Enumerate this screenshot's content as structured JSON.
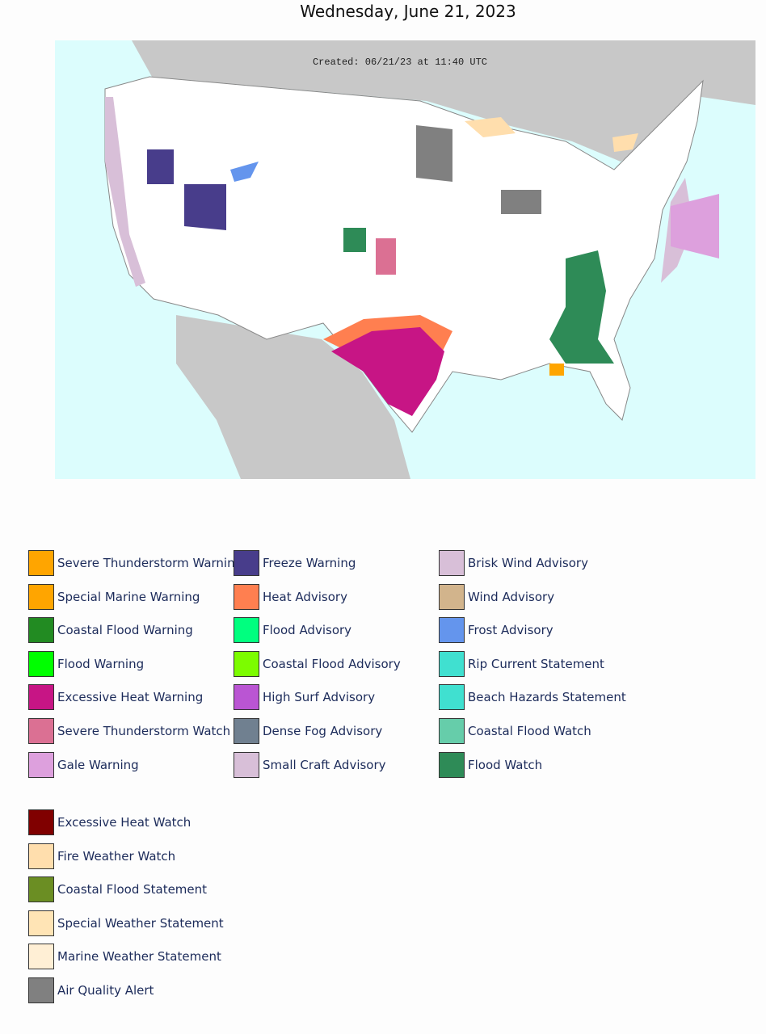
{
  "header": {
    "title": "Wednesday, June 21, 2023"
  },
  "map": {
    "created": "Created: 06/21/23 at 11:40 UTC"
  },
  "legend": {
    "columns": [
      [
        {
          "label": "Severe Thunderstorm Warning",
          "color": "#ffa500"
        },
        {
          "label": "Special Marine Warning",
          "color": "#ffa500"
        },
        {
          "label": "Coastal Flood Warning",
          "color": "#228b22"
        },
        {
          "label": "Flood Warning",
          "color": "#00ff00"
        },
        {
          "label": "Excessive Heat Warning",
          "color": "#c71585"
        },
        {
          "label": "Severe Thunderstorm Watch",
          "color": "#db7093"
        },
        {
          "label": "Gale Warning",
          "color": "#dda0dd"
        }
      ],
      [
        {
          "label": "Freeze Warning",
          "color": "#483d8b"
        },
        {
          "label": "Heat Advisory",
          "color": "#ff7f50"
        },
        {
          "label": "Flood Advisory",
          "color": "#00ff7f"
        },
        {
          "label": "Coastal Flood Advisory",
          "color": "#7cfc00"
        },
        {
          "label": "High Surf Advisory",
          "color": "#ba55d3"
        },
        {
          "label": "Dense Fog Advisory",
          "color": "#708090"
        },
        {
          "label": "Small Craft Advisory",
          "color": "#d8bfd8"
        }
      ],
      [
        {
          "label": "Brisk Wind Advisory",
          "color": "#d8bfd8"
        },
        {
          "label": "Wind Advisory",
          "color": "#d2b48c"
        },
        {
          "label": "Frost Advisory",
          "color": "#6495ed"
        },
        {
          "label": "Rip Current Statement",
          "color": "#40e0d0"
        },
        {
          "label": "Beach Hazards Statement",
          "color": "#40e0d0"
        },
        {
          "label": "Coastal Flood Watch",
          "color": "#66cdaa"
        },
        {
          "label": "Flood Watch",
          "color": "#2e8b57"
        }
      ]
    ],
    "extra": [
      {
        "label": "Excessive Heat Watch",
        "color": "#800000"
      },
      {
        "label": "Fire Weather Watch",
        "color": "#ffdead"
      },
      {
        "label": "Coastal Flood Statement",
        "color": "#6b8e23"
      },
      {
        "label": "Special Weather Statement",
        "color": "#ffe4b5"
      },
      {
        "label": "Marine Weather Statement",
        "color": "#ffefd5"
      },
      {
        "label": "Air Quality Alert",
        "color": "#808080"
      }
    ]
  }
}
